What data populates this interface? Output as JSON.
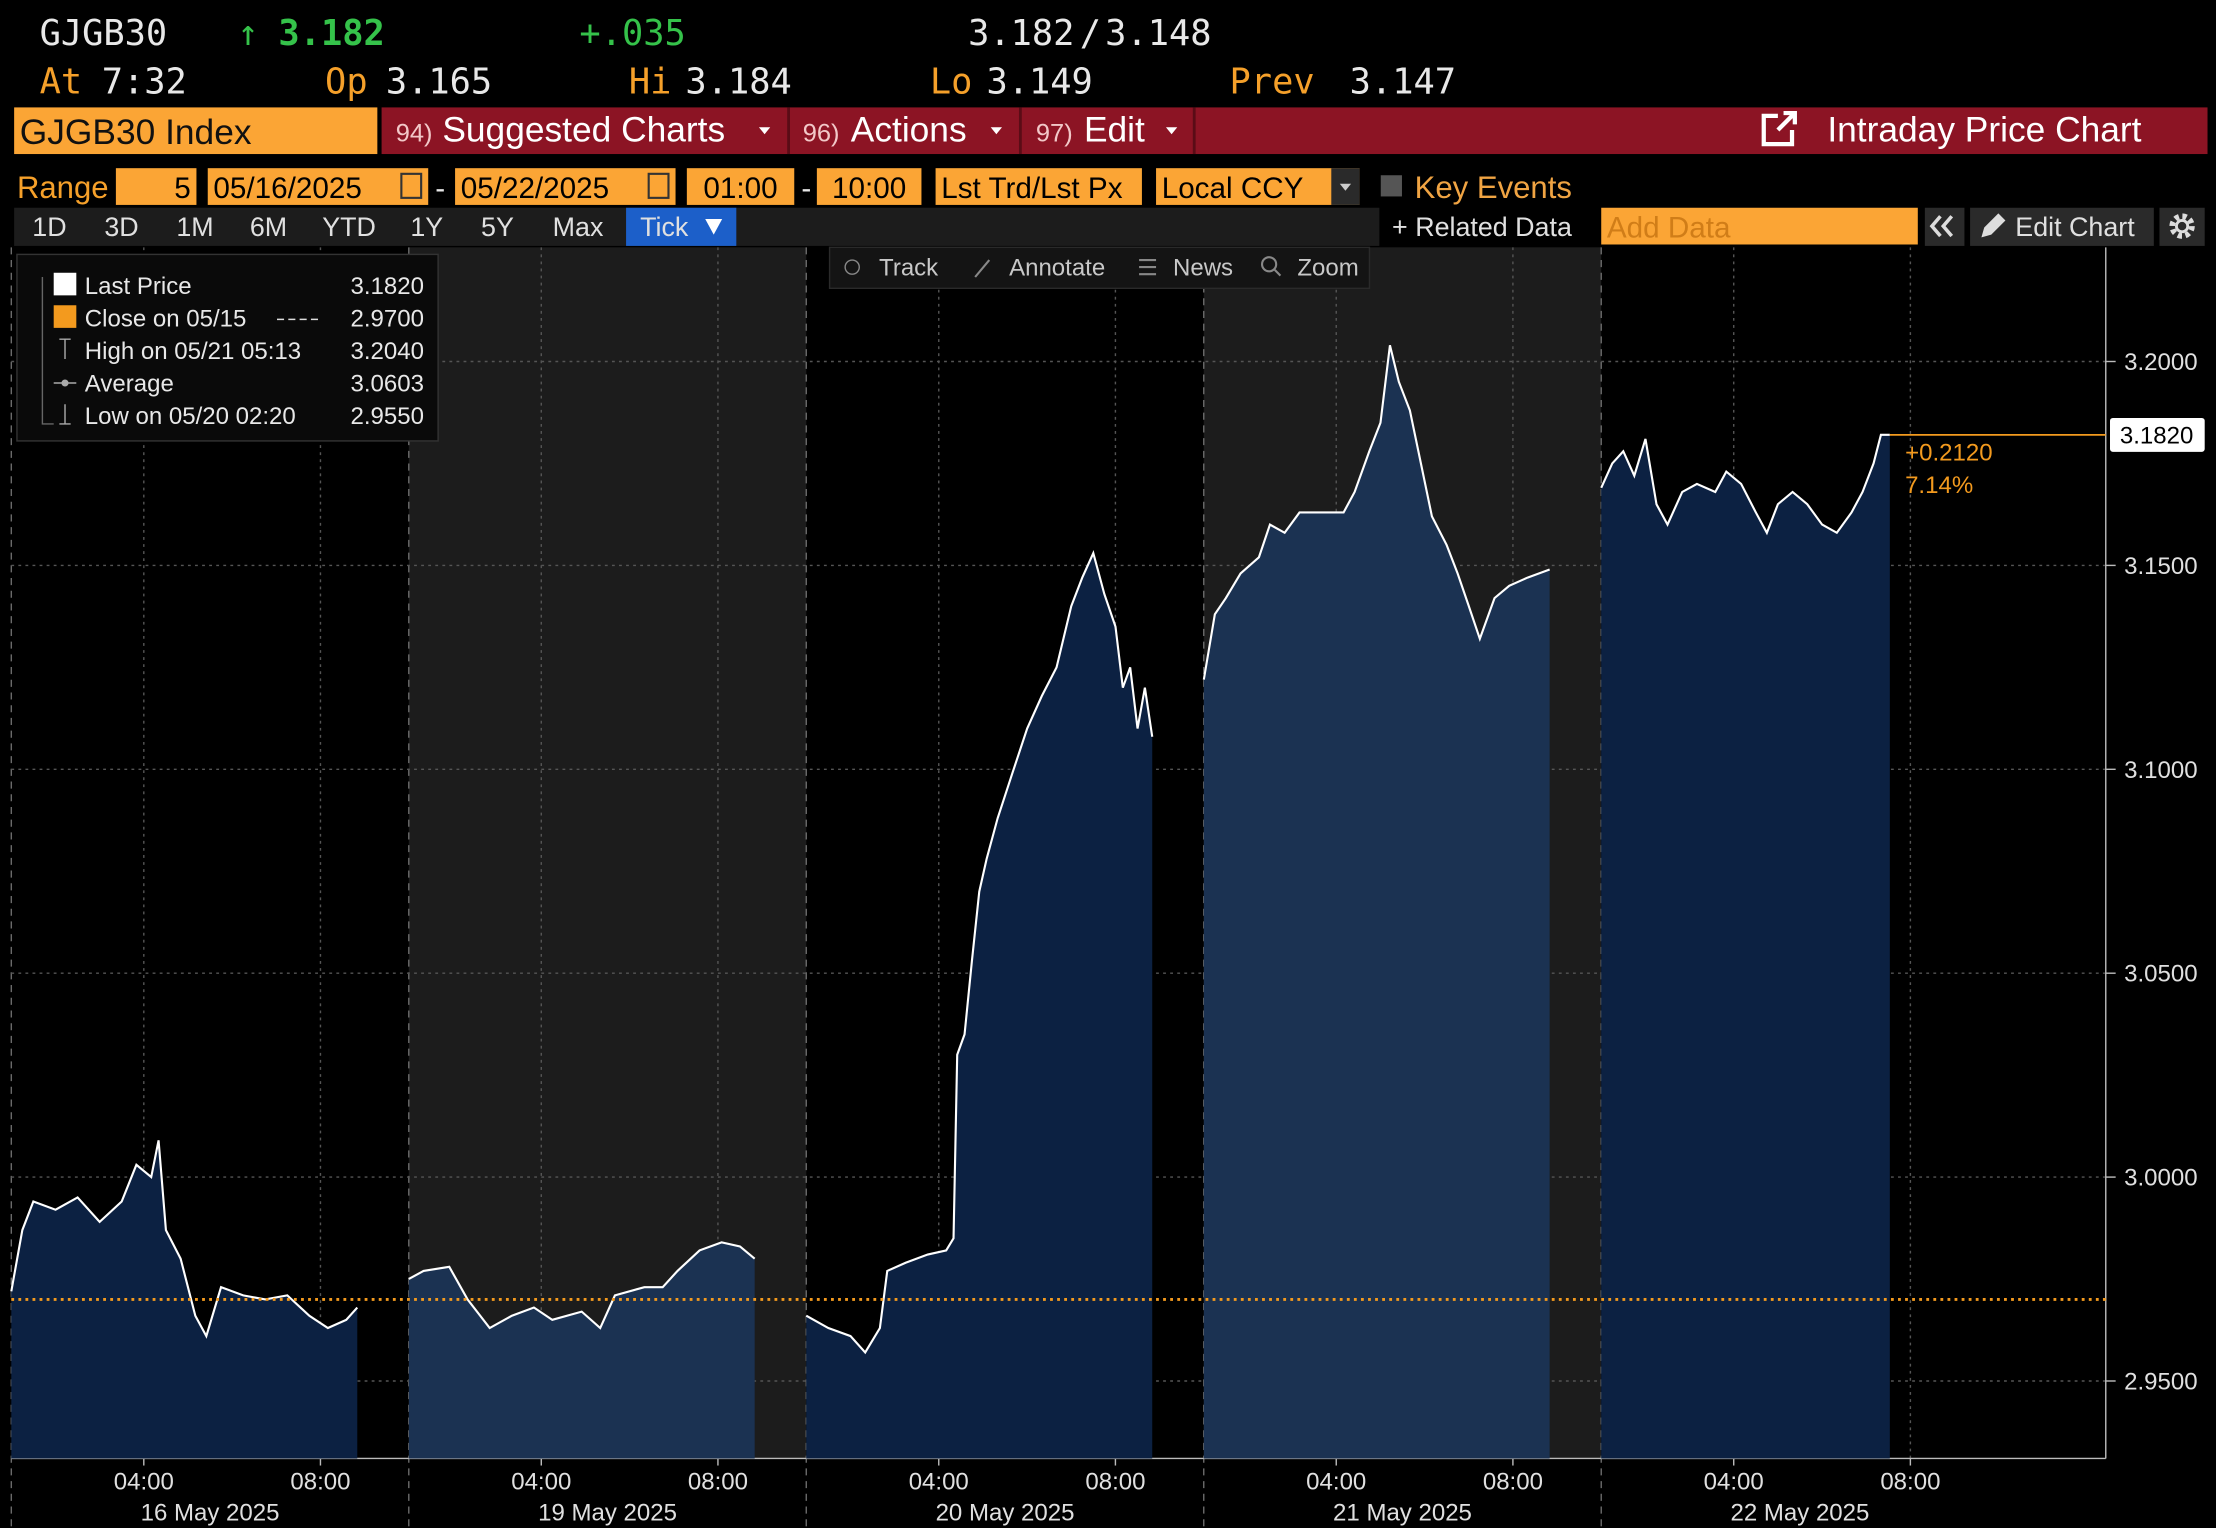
{
  "quote": {
    "ticker": "GJGB30",
    "arrow": "↑",
    "last": "3.182",
    "change": "+.035",
    "bid": "3.182",
    "bid_ask_separator": "/",
    "ask": "3.148",
    "at_label": "At",
    "at": "7:32",
    "open_label": "Op",
    "open": "3.165",
    "high_label": "Hi",
    "high": "3.184",
    "low_label": "Lo",
    "low": "3.149",
    "prev_label": "Prev",
    "prev": "3.147"
  },
  "menu": {
    "security": "GJGB30 Index",
    "items": [
      {
        "key": "94)",
        "label": "Suggested Charts"
      },
      {
        "key": "96)",
        "label": "Actions"
      },
      {
        "key": "97)",
        "label": "Edit"
      }
    ],
    "title": "Intraday Price Chart"
  },
  "range": {
    "label": "Range",
    "count": "5",
    "start_date": "05/16/2025",
    "end_date": "05/22/2025",
    "start_time": "01:00",
    "end_time": "10:00",
    "separator": "-",
    "price_type": "Lst Trd/Lst Px",
    "currency": "Local CCY",
    "key_events": "Key Events"
  },
  "periods": [
    "1D",
    "3D",
    "1M",
    "6M",
    "YTD",
    "1Y",
    "5Y",
    "Max",
    "Tick"
  ],
  "selected_period": "Tick",
  "toolbar": {
    "related": "+ Related Data",
    "add_data": "Add Data",
    "edit_chart": "Edit Chart"
  },
  "chart_tools": [
    "Track",
    "Annotate",
    "News",
    "Zoom"
  ],
  "chart_data": {
    "type": "line",
    "day_labels": [
      "16 May 2025",
      "19 May 2025",
      "20 May 2025",
      "21 May 2025",
      "22 May 2025"
    ],
    "x": [
      "16 May 2025 01:00",
      "16 May 2025 01:15",
      "16 May 2025 01:30",
      "16 May 2025 02:00",
      "16 May 2025 02:30",
      "16 May 2025 03:00",
      "16 May 2025 03:30",
      "16 May 2025 03:50",
      "16 May 2025 04:10",
      "16 May 2025 04:20",
      "16 May 2025 04:30",
      "16 May 2025 04:50",
      "16 May 2025 05:10",
      "16 May 2025 05:25",
      "16 May 2025 05:45",
      "16 May 2025 06:15",
      "16 May 2025 06:45",
      "16 May 2025 07:15",
      "16 May 2025 07:45",
      "16 May 2025 08:10",
      "16 May 2025 08:35",
      "16 May 2025 08:50",
      "19 May 2025 01:00",
      "19 May 2025 01:20",
      "19 May 2025 01:55",
      "19 May 2025 02:20",
      "19 May 2025 02:50",
      "19 May 2025 03:20",
      "19 May 2025 03:50",
      "19 May 2025 04:15",
      "19 May 2025 04:55",
      "19 May 2025 05:20",
      "19 May 2025 05:40",
      "19 May 2025 06:20",
      "19 May 2025 06:45",
      "19 May 2025 07:05",
      "19 May 2025 07:35",
      "19 May 2025 08:05",
      "19 May 2025 08:30",
      "19 May 2025 08:50",
      "20 May 2025 01:00",
      "20 May 2025 01:30",
      "20 May 2025 02:00",
      "20 May 2025 02:20",
      "20 May 2025 02:40",
      "20 May 2025 02:50",
      "20 May 2025 03:15",
      "20 May 2025 03:45",
      "20 May 2025 04:10",
      "20 May 2025 04:20",
      "20 May 2025 04:25",
      "20 May 2025 04:35",
      "20 May 2025 04:45",
      "20 May 2025 04:55",
      "20 May 2025 05:05",
      "20 May 2025 05:20",
      "20 May 2025 05:40",
      "20 May 2025 06:00",
      "20 May 2025 06:20",
      "20 May 2025 06:40",
      "20 May 2025 07:00",
      "20 May 2025 07:15",
      "20 May 2025 07:30",
      "20 May 2025 07:45",
      "20 May 2025 08:00",
      "20 May 2025 08:10",
      "20 May 2025 08:20",
      "20 May 2025 08:30",
      "20 May 2025 08:40",
      "20 May 2025 08:50",
      "21 May 2025 01:00",
      "21 May 2025 01:15",
      "21 May 2025 01:30",
      "21 May 2025 01:50",
      "21 May 2025 02:15",
      "21 May 2025 02:30",
      "21 May 2025 02:50",
      "21 May 2025 03:10",
      "21 May 2025 03:40",
      "21 May 2025 04:10",
      "21 May 2025 04:25",
      "21 May 2025 04:45",
      "21 May 2025 05:00",
      "21 May 2025 05:13",
      "21 May 2025 05:25",
      "21 May 2025 05:40",
      "21 May 2025 05:55",
      "21 May 2025 06:10",
      "21 May 2025 06:30",
      "21 May 2025 06:45",
      "21 May 2025 07:00",
      "21 May 2025 07:15",
      "21 May 2025 07:35",
      "21 May 2025 07:55",
      "21 May 2025 08:20",
      "21 May 2025 08:50",
      "22 May 2025 01:00",
      "22 May 2025 01:15",
      "22 May 2025 01:30",
      "22 May 2025 01:45",
      "22 May 2025 02:00",
      "22 May 2025 02:15",
      "22 May 2025 02:30",
      "22 May 2025 02:50",
      "22 May 2025 03:10",
      "22 May 2025 03:35",
      "22 May 2025 03:50",
      "22 May 2025 04:10",
      "22 May 2025 04:30",
      "22 May 2025 04:45",
      "22 May 2025 05:00",
      "22 May 2025 05:20",
      "22 May 2025 05:40",
      "22 May 2025 06:00",
      "22 May 2025 06:20",
      "22 May 2025 06:40",
      "22 May 2025 06:55",
      "22 May 2025 07:10",
      "22 May 2025 07:20",
      "22 May 2025 07:32"
    ],
    "series": [
      {
        "name": "Last Price",
        "color": "#ffffff",
        "area_color": "#0c2142",
        "values": [
          2.972,
          2.987,
          2.994,
          2.992,
          2.995,
          2.989,
          2.994,
          3.003,
          3.0,
          3.009,
          2.987,
          2.98,
          2.966,
          2.961,
          2.973,
          2.971,
          2.97,
          2.971,
          2.966,
          2.963,
          2.965,
          2.968,
          2.975,
          2.977,
          2.978,
          2.97,
          2.963,
          2.966,
          2.968,
          2.965,
          2.967,
          2.963,
          2.971,
          2.973,
          2.973,
          2.977,
          2.982,
          2.984,
          2.983,
          2.98,
          2.966,
          2.963,
          2.961,
          2.957,
          2.963,
          2.977,
          2.979,
          2.981,
          2.982,
          2.985,
          3.03,
          3.035,
          3.053,
          3.07,
          3.078,
          3.088,
          3.099,
          3.11,
          3.118,
          3.125,
          3.14,
          3.147,
          3.153,
          3.143,
          3.135,
          3.12,
          3.125,
          3.11,
          3.12,
          3.108,
          3.122,
          3.138,
          3.142,
          3.148,
          3.152,
          3.16,
          3.158,
          3.163,
          3.163,
          3.163,
          3.168,
          3.178,
          3.185,
          3.204,
          3.195,
          3.188,
          3.175,
          3.162,
          3.155,
          3.148,
          3.14,
          3.132,
          3.142,
          3.145,
          3.147,
          3.149,
          3.169,
          3.175,
          3.178,
          3.172,
          3.181,
          3.165,
          3.16,
          3.168,
          3.17,
          3.168,
          3.173,
          3.17,
          3.163,
          3.158,
          3.165,
          3.168,
          3.165,
          3.16,
          3.158,
          3.163,
          3.168,
          3.175,
          3.182,
          3.182
        ]
      }
    ],
    "xticks": [
      {
        "value": "16 May 2025 04:00",
        "label": "04:00"
      },
      {
        "value": "16 May 2025 08:00",
        "label": "08:00"
      },
      {
        "value": "19 May 2025 04:00",
        "label": "04:00"
      },
      {
        "value": "19 May 2025 08:00",
        "label": "08:00"
      },
      {
        "value": "20 May 2025 04:00",
        "label": "04:00"
      },
      {
        "value": "20 May 2025 08:00",
        "label": "08:00"
      },
      {
        "value": "21 May 2025 04:00",
        "label": "04:00"
      },
      {
        "value": "21 May 2025 08:00",
        "label": "08:00"
      },
      {
        "value": "22 May 2025 04:00",
        "label": "04:00"
      },
      {
        "value": "22 May 2025 08:00",
        "label": "08:00"
      }
    ],
    "ylim": [
      2.931,
      3.228
    ],
    "yticks": [
      {
        "value": 2.95,
        "label": "2.9500"
      },
      {
        "value": 3.0,
        "label": "3.0000"
      },
      {
        "value": 3.05,
        "label": "3.0500"
      },
      {
        "value": 3.1,
        "label": "3.1000"
      },
      {
        "value": 3.15,
        "label": "3.1500"
      },
      {
        "value": 3.2,
        "label": "3.2000"
      }
    ],
    "grid": true,
    "reference_line": {
      "value": 2.97,
      "color": "#f39a1e"
    },
    "last_value": 3.182,
    "last_value_label": "3.1820",
    "change_label": "+0.2120",
    "change_pct_label": "7.14%",
    "stats": [
      {
        "label": "Close on 05/15",
        "value": "2.9700"
      },
      {
        "label": "High on 05/21 05:13",
        "value": "3.2040"
      },
      {
        "label": "Average",
        "value": "3.0603"
      },
      {
        "label": "Low on 05/20 02:20",
        "value": "2.9550"
      }
    ]
  }
}
